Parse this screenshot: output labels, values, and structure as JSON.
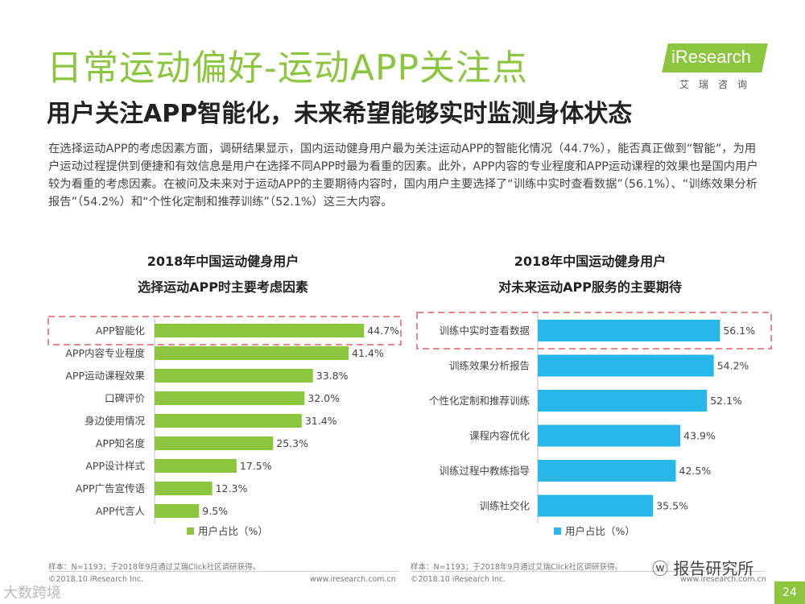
{
  "header": {
    "title": "日常运动偏好-运动APP关注点",
    "subtitle": "用户关注APP智能化，未来希望能够实时监测身体状态"
  },
  "logo": {
    "brand": "iResearch",
    "sub": "艾瑞咨询"
  },
  "intro": "在选择运动APP的考虑因素方面，调研结果显示，国内运动健身用户最为关注运动APP的智能化情况（44.7%），能否真正做到“智能”，为用户运动过程提供到便捷和有效信息是用户在选择不同APP时最为看重的因素。此外，APP内容的专业程度和APP运动课程的效果也是国内用户较为看重的考虑因素。在被问及未来对于运动APP的主要期待内容时，国内用户主要选择了“训练中实时查看数据”（56.1%）、“训练效果分析报告”（54.2%）和“个性化定制和推荐训练”（52.1%）这三大内容。",
  "chart_data": [
    {
      "type": "bar",
      "orientation": "horizontal",
      "title_line1": "2018年中国运动健身用户",
      "title_line2": "选择运动APP时主要考虑因素",
      "categories": [
        "APP智能化",
        "APP内容专业程度",
        "APP运动课程效果",
        "口碑评价",
        "身边使用情况",
        "APP知名度",
        "APP设计样式",
        "APP广告宣传语",
        "APP代言人"
      ],
      "values": [
        44.7,
        41.4,
        33.8,
        32.0,
        31.4,
        25.3,
        17.5,
        12.3,
        9.5
      ],
      "value_labels": [
        "44.7%",
        "41.4%",
        "33.8%",
        "32.0%",
        "31.4%",
        "25.3%",
        "17.5%",
        "12.3%",
        "9.5%"
      ],
      "series_name": "用户占比（%）",
      "color": "#8cc63f",
      "highlight_index": 0,
      "xlim": [
        0,
        45
      ]
    },
    {
      "type": "bar",
      "orientation": "horizontal",
      "title_line1": "2018年中国运动健身用户",
      "title_line2": "对未来运动APP服务的主要期待",
      "categories": [
        "训练中实时查看数据",
        "训练效果分析报告",
        "个性化定制和推荐训练",
        "课程内容优化",
        "训练过程中教练指导",
        "训练社交化"
      ],
      "values": [
        56.1,
        54.2,
        52.1,
        43.9,
        42.5,
        35.5
      ],
      "value_labels": [
        "56.1%",
        "54.2%",
        "52.1%",
        "43.9%",
        "42.5%",
        "35.5%"
      ],
      "series_name": "用户占比（%）",
      "color": "#29b6e8",
      "highlight_index": 0,
      "xlim": [
        0,
        57
      ]
    }
  ],
  "footer": {
    "sample_note": "样本：N=1193；于2018年9月通过艾瑞Click社区调研获得。",
    "copyright": "©2018.10 iResearch Inc.",
    "url": "www.iresearch.com.cn",
    "page_number": "24"
  },
  "watermarks": {
    "right": "报告研究所",
    "left": "大数跨境"
  }
}
